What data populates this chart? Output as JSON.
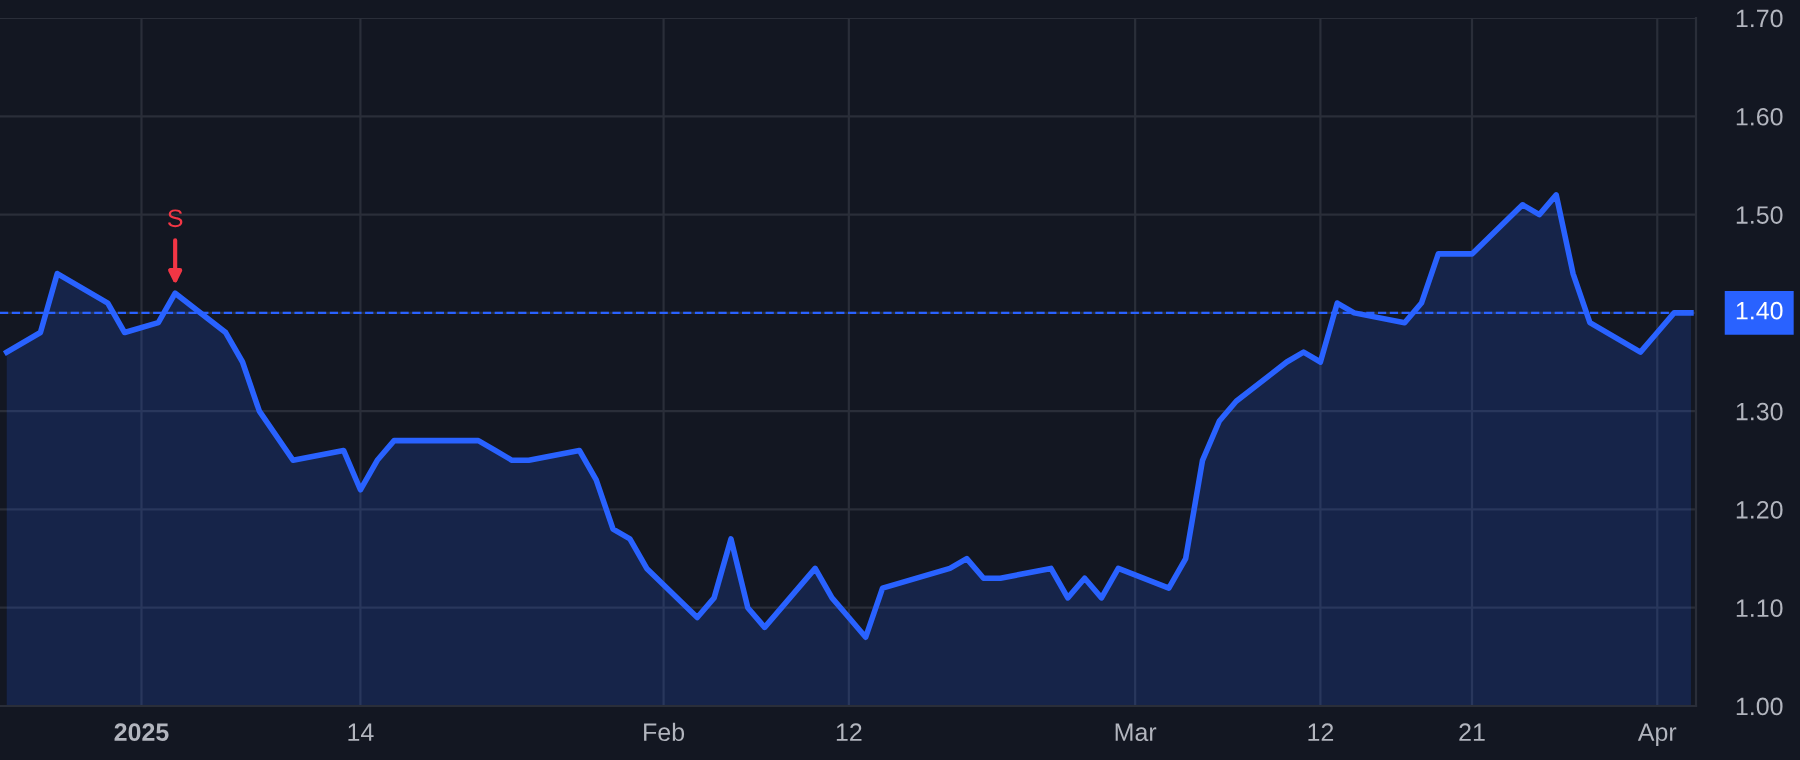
{
  "chart_data": {
    "type": "area",
    "x": [
      "2024-12-24",
      "2024-12-26",
      "2024-12-27",
      "2024-12-30",
      "2024-12-31",
      "2025-01-02",
      "2025-01-03",
      "2025-01-06",
      "2025-01-07",
      "2025-01-08",
      "2025-01-10",
      "2025-01-13",
      "2025-01-14",
      "2025-01-15",
      "2025-01-16",
      "2025-01-17",
      "2025-01-21",
      "2025-01-22",
      "2025-01-23",
      "2025-01-24",
      "2025-01-27",
      "2025-01-28",
      "2025-01-29",
      "2025-01-30",
      "2025-01-31",
      "2025-02-03",
      "2025-02-04",
      "2025-02-05",
      "2025-02-06",
      "2025-02-07",
      "2025-02-10",
      "2025-02-11",
      "2025-02-12",
      "2025-02-13",
      "2025-02-14",
      "2025-02-18",
      "2025-02-19",
      "2025-02-20",
      "2025-02-21",
      "2025-02-24",
      "2025-02-25",
      "2025-02-26",
      "2025-02-27",
      "2025-02-28",
      "2025-03-03",
      "2025-03-04",
      "2025-03-05",
      "2025-03-06",
      "2025-03-07",
      "2025-03-10",
      "2025-03-11",
      "2025-03-12",
      "2025-03-13",
      "2025-03-14",
      "2025-03-17",
      "2025-03-18",
      "2025-03-19",
      "2025-03-20",
      "2025-03-21",
      "2025-03-24",
      "2025-03-25",
      "2025-03-26",
      "2025-03-27",
      "2025-03-28",
      "2025-03-31",
      "2025-04-01",
      "2025-04-02",
      "2025-04-03"
    ],
    "series": [
      {
        "color": "#2962ff",
        "values": [
          1.36,
          1.38,
          1.44,
          1.41,
          1.38,
          1.39,
          1.42,
          1.38,
          1.35,
          1.3,
          1.25,
          1.26,
          1.22,
          1.25,
          1.27,
          1.27,
          1.27,
          1.26,
          1.25,
          1.25,
          1.26,
          1.23,
          1.18,
          1.17,
          1.14,
          1.09,
          1.11,
          1.17,
          1.1,
          1.08,
          1.14,
          1.11,
          1.09,
          1.07,
          1.12,
          1.14,
          1.15,
          1.13,
          1.13,
          1.14,
          1.11,
          1.13,
          1.11,
          1.14,
          1.12,
          1.15,
          1.25,
          1.29,
          1.31,
          1.35,
          1.36,
          1.35,
          1.41,
          1.4,
          1.39,
          1.41,
          1.46,
          1.46,
          1.46,
          1.51,
          1.5,
          1.52,
          1.44,
          1.39,
          1.36,
          1.38,
          1.4,
          1.4
        ]
      }
    ],
    "xlim": [
      "2024-12-24",
      "2025-04-03"
    ],
    "xticks": [
      {
        "value": "2025-01-01",
        "label": "2025"
      },
      {
        "value": "2025-01-14",
        "label": "14"
      },
      {
        "value": "2025-02-01",
        "label": "Feb"
      },
      {
        "value": "2025-02-12",
        "label": "12"
      },
      {
        "value": "2025-03-01",
        "label": "Mar"
      },
      {
        "value": "2025-03-12",
        "label": "12"
      },
      {
        "value": "2025-03-21",
        "label": "21"
      },
      {
        "value": "2025-04-01",
        "label": "Apr"
      }
    ],
    "ylim": [
      1.0,
      1.7
    ],
    "yticks": [
      {
        "value": 1.0,
        "label": "1.00"
      },
      {
        "value": 1.1,
        "label": "1.10"
      },
      {
        "value": 1.2,
        "label": "1.20"
      },
      {
        "value": 1.3,
        "label": "1.30"
      },
      {
        "value": 1.4,
        "label": "1.40"
      },
      {
        "value": 1.5,
        "label": "1.50"
      },
      {
        "value": 1.6,
        "label": "1.60"
      },
      {
        "value": 1.7,
        "label": "1.70"
      }
    ],
    "ref_lines": [
      {
        "axis": "y",
        "value": 1.4,
        "label": "1.40",
        "color": "#2962ff",
        "line_style": "dashed"
      }
    ],
    "annotations": [
      {
        "text": "S",
        "x": "2025-01-03",
        "y": 1.42
      }
    ],
    "grid": true,
    "legend": false,
    "marker": "none",
    "line_style": "solid"
  }
}
